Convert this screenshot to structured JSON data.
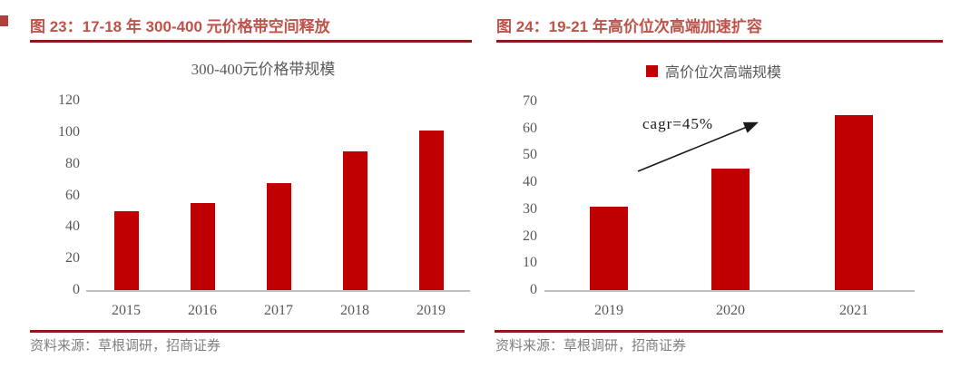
{
  "figures": [
    {
      "title": "图 23：17-18 年 300-400 元价格带空间释放",
      "source": "资料来源：草根调研，招商证券"
    },
    {
      "title": "图 24：19-21 年高价位次高端加速扩容",
      "source": "资料来源：草根调研，招商证券"
    }
  ],
  "colors": {
    "bar": "#c00000",
    "figure_title": "#bd5349",
    "rule": "#8c1a1c",
    "axis_text": "#595959",
    "source_text": "#7f7f7f",
    "axis_line": "#bfbfbf",
    "annotation": "#1a1a1a"
  },
  "chart_data": [
    {
      "type": "bar",
      "title": "300-400元价格带规模",
      "categories": [
        "2015",
        "2016",
        "2017",
        "2018",
        "2019"
      ],
      "values": [
        50,
        55,
        68,
        88,
        101
      ],
      "xlabel": "",
      "ylabel": "",
      "ylim": [
        0,
        120
      ],
      "ytick_step": 20,
      "grid": false,
      "legend_position": "none"
    },
    {
      "type": "bar",
      "title": "",
      "categories": [
        "2019",
        "2020",
        "2021"
      ],
      "values": [
        31,
        45,
        65
      ],
      "xlabel": "",
      "ylabel": "",
      "ylim": [
        0,
        70
      ],
      "ytick_step": 10,
      "grid": false,
      "legend_position": "top",
      "series": [
        {
          "name": "高价位次高端规模",
          "values": [
            31,
            45,
            65
          ]
        }
      ],
      "annotation": "cagr=45%"
    }
  ]
}
